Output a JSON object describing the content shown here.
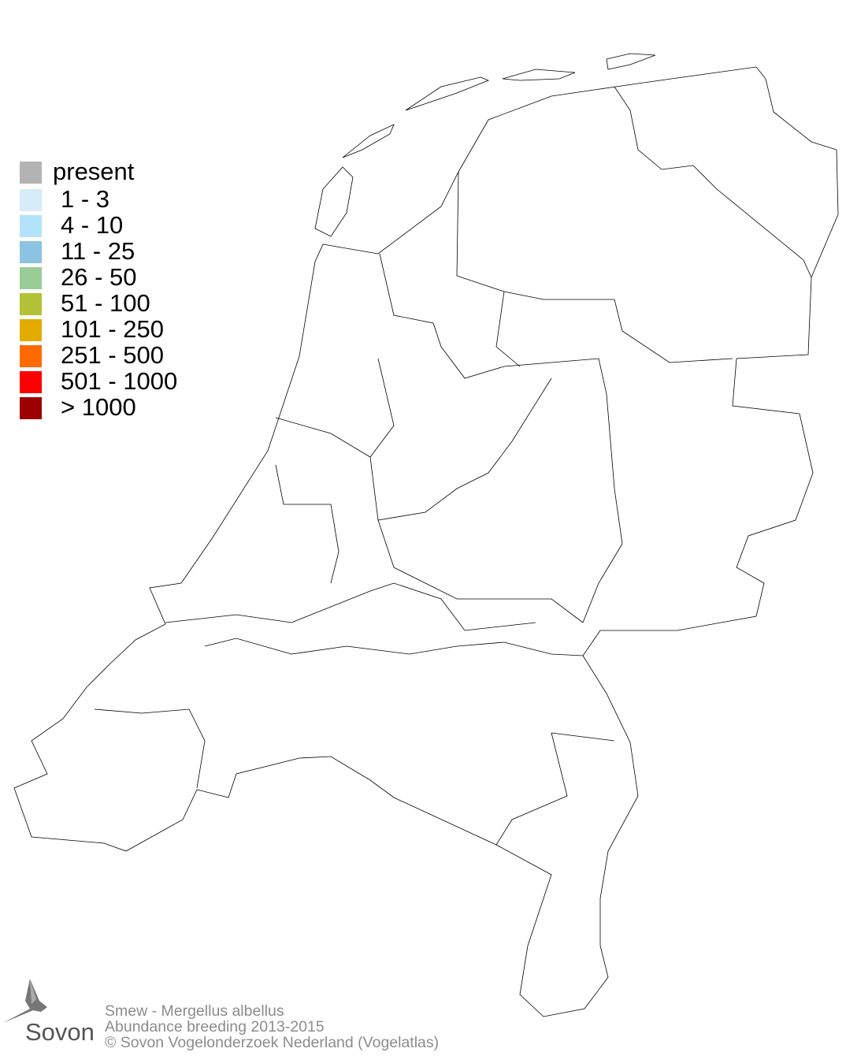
{
  "legend": {
    "items": [
      {
        "label": "present",
        "color": "#b3b3b3"
      },
      {
        "label": "1 - 3",
        "color": "#d6ecfa"
      },
      {
        "label": "4 - 10",
        "color": "#b3e3fa"
      },
      {
        "label": "11 - 25",
        "color": "#8cc3e0"
      },
      {
        "label": "26 - 50",
        "color": "#9acc97"
      },
      {
        "label": "51 - 100",
        "color": "#b3c236"
      },
      {
        "label": "101 - 250",
        "color": "#e3ac00"
      },
      {
        "label": "251 - 500",
        "color": "#ff6a00"
      },
      {
        "label": "501 - 1000",
        "color": "#ff0000"
      },
      {
        "label": "> 1000",
        "color": "#9c0000"
      }
    ]
  },
  "caption": {
    "species": "Smew - Mergellus albellus",
    "subtitle": "Abundance breeding 2013-2015",
    "copyright": "© Sovon Vogelonderzoek Nederland (Vogelatlas)"
  },
  "logo": {
    "text": "Sovon"
  },
  "map": {
    "outline_color": "#000000",
    "fill": "#ffffff"
  }
}
